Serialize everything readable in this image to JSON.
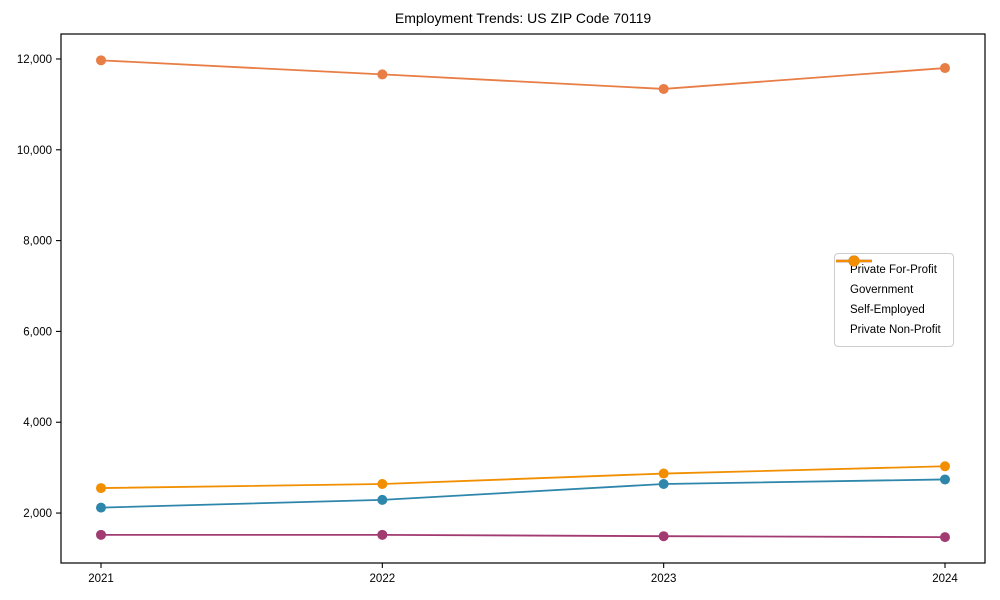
{
  "chart_data": {
    "type": "line",
    "title": "Employment Trends: US ZIP Code 70119",
    "x_categories": [
      "2021",
      "2022",
      "2023",
      "2024"
    ],
    "series": [
      {
        "name": "Private For-Profit",
        "color": "#e87d45",
        "values": [
          11970,
          11660,
          11340,
          11800
        ]
      },
      {
        "name": "Government",
        "color": "#2e86ab",
        "values": [
          2120,
          2290,
          2640,
          2740
        ]
      },
      {
        "name": "Self-Employed",
        "color": "#a23b72",
        "values": [
          1520,
          1520,
          1490,
          1470
        ]
      },
      {
        "name": "Private Non-Profit",
        "color": "#f18f01",
        "values": [
          2550,
          2640,
          2870,
          3030
        ]
      }
    ],
    "ylim": [
      900,
      12550
    ],
    "yticks": [
      2000,
      4000,
      6000,
      8000,
      10000,
      12000
    ],
    "ytick_format": "comma",
    "xlabel": "",
    "ylabel": "",
    "grid": false,
    "legend_position": "right",
    "legend_border_color": "#cccccc",
    "axis_color": "#000000",
    "background_color": "#ffffff",
    "marker": "circle",
    "marker_radius": 5,
    "line_width": 1.8
  }
}
